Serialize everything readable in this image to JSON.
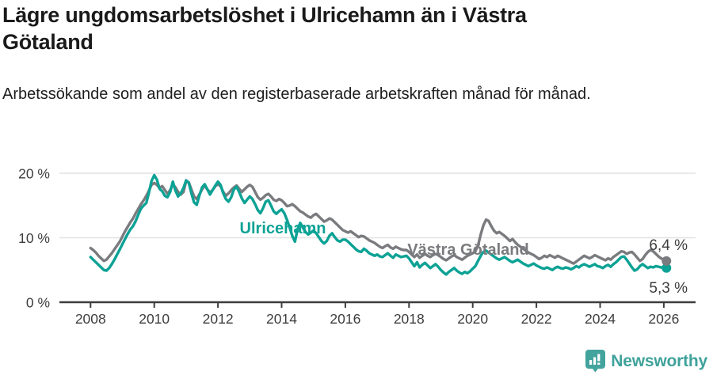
{
  "page": {
    "title": "Lägre ungdomsarbetslöshet i Ulricehamn än i Västra Götaland",
    "subtitle": "Arbetssökande som andel av den registerbaserade arbetskraften månad för månad."
  },
  "footer": {
    "brand": "Newsworthy",
    "logo_icon": "bar-chart-speech-bubble",
    "brand_color": "#3fa29b"
  },
  "chart_data": {
    "type": "line",
    "title": "Lägre ungdomsarbetslöshet i Ulricehamn än i Västra Götaland",
    "subtitle": "Arbetssökande som andel av den registerbaserade arbetskraften månad för månad.",
    "unit": "%",
    "x_start_year": 2008,
    "x_step_months": 1,
    "x_end": "2026-02",
    "x_ticks": [
      2008,
      2010,
      2012,
      2014,
      2016,
      2018,
      2020,
      2022,
      2024,
      2026
    ],
    "ylim": [
      0,
      20
    ],
    "y_ticks": [
      {
        "value": 0,
        "label": "0 %"
      },
      {
        "value": 10,
        "label": "10 %"
      },
      {
        "value": 20,
        "label": "20 %"
      }
    ],
    "grid": "horizontal",
    "legend_position": "inline-labels",
    "series": [
      {
        "name": "Ulricehamn",
        "color": "#0ca295",
        "end_label": "5,3 %",
        "end_value": 5.3,
        "values": [
          7.0,
          6.6,
          6.2,
          5.8,
          5.4,
          5.0,
          4.9,
          5.3,
          5.9,
          6.6,
          7.4,
          8.2,
          9.0,
          9.8,
          10.6,
          11.3,
          11.8,
          12.6,
          13.6,
          14.5,
          15.0,
          15.4,
          17.0,
          18.8,
          19.7,
          19.0,
          17.6,
          17.2,
          16.5,
          16.3,
          17.1,
          18.7,
          17.3,
          16.4,
          16.9,
          17.7,
          18.9,
          18.5,
          16.9,
          15.5,
          15.1,
          16.5,
          17.8,
          18.3,
          17.5,
          16.7,
          17.4,
          18.1,
          18.7,
          18.2,
          16.9,
          16.0,
          15.6,
          16.3,
          17.5,
          17.9,
          17.1,
          16.1,
          15.4,
          15.9,
          16.4,
          16.0,
          15.2,
          14.3,
          13.8,
          14.6,
          15.6,
          15.8,
          15.0,
          14.1,
          13.7,
          14.1,
          14.4,
          13.8,
          12.8,
          11.6,
          10.3,
          9.4,
          11.3,
          12.3,
          11.6,
          10.9,
          10.5,
          10.8,
          11.1,
          10.7,
          10.1,
          9.5,
          9.1,
          9.5,
          10.3,
          10.7,
          10.1,
          9.6,
          9.4,
          9.7,
          9.7,
          9.4,
          9.0,
          8.6,
          8.2,
          7.9,
          7.8,
          8.3,
          8.0,
          7.6,
          7.4,
          7.2,
          7.4,
          7.1,
          7.0,
          7.3,
          7.6,
          7.2,
          6.9,
          7.4,
          7.2,
          7.0,
          7.1,
          7.2,
          6.8,
          6.2,
          5.6,
          6.2,
          5.4,
          5.8,
          6.1,
          5.7,
          5.3,
          5.6,
          5.9,
          5.5,
          5.0,
          4.6,
          4.3,
          4.7,
          5.0,
          5.3,
          4.9,
          4.6,
          4.4,
          4.7,
          4.5,
          4.8,
          5.2,
          5.6,
          6.4,
          7.2,
          7.8,
          8.0,
          7.7,
          7.4,
          7.1,
          6.8,
          6.6,
          6.8,
          7.0,
          6.7,
          6.4,
          6.2,
          6.4,
          6.6,
          6.3,
          6.0,
          5.8,
          5.6,
          5.8,
          6.0,
          5.7,
          5.5,
          5.3,
          5.2,
          5.4,
          5.2,
          5.0,
          5.3,
          5.5,
          5.3,
          5.2,
          5.4,
          5.3,
          5.1,
          5.3,
          5.6,
          5.4,
          5.7,
          5.9,
          5.7,
          5.5,
          5.7,
          5.9,
          5.6,
          5.5,
          5.3,
          5.6,
          5.8,
          5.5,
          5.9,
          6.2,
          6.6,
          7.0,
          7.1,
          6.6,
          6.0,
          5.4,
          4.9,
          5.1,
          5.6,
          5.9,
          5.6,
          5.3,
          5.5,
          5.4,
          5.6,
          5.5,
          5.4,
          5.4,
          5.3
        ]
      },
      {
        "name": "Västra Götaland",
        "color": "#7a7b7e",
        "end_label": "6,4 %",
        "end_value": 6.4,
        "values": [
          8.4,
          8.1,
          7.7,
          7.2,
          6.8,
          6.4,
          6.6,
          7.1,
          7.6,
          8.2,
          8.8,
          9.4,
          10.2,
          11.0,
          11.7,
          12.4,
          13.0,
          13.8,
          14.5,
          15.2,
          15.8,
          16.5,
          17.3,
          18.2,
          18.5,
          18.2,
          17.7,
          18.0,
          17.4,
          16.8,
          17.4,
          18.3,
          17.8,
          17.1,
          16.7,
          17.1,
          18.8,
          18.6,
          17.5,
          16.4,
          16.0,
          16.7,
          17.5,
          18.1,
          17.5,
          17.0,
          17.4,
          18.0,
          18.3,
          18.0,
          17.1,
          16.5,
          16.9,
          17.4,
          17.8,
          18.1,
          17.6,
          17.1,
          17.5,
          17.9,
          18.2,
          17.9,
          17.1,
          16.3,
          15.9,
          16.2,
          16.6,
          16.8,
          16.4,
          15.9,
          15.7,
          16.0,
          15.8,
          15.4,
          14.9,
          15.0,
          15.2,
          14.9,
          14.5,
          14.1,
          13.9,
          13.6,
          13.3,
          13.1,
          13.5,
          13.7,
          13.3,
          12.9,
          12.5,
          12.7,
          13.0,
          12.8,
          12.4,
          12.0,
          11.6,
          11.2,
          11.0,
          10.8,
          11.0,
          10.7,
          10.4,
          10.1,
          10.3,
          10.2,
          9.9,
          9.6,
          9.4,
          9.2,
          8.9,
          8.6,
          8.4,
          8.7,
          8.9,
          8.5,
          8.3,
          8.6,
          8.4,
          8.2,
          8.1,
          8.1,
          7.8,
          7.4,
          7.0,
          7.4,
          6.9,
          7.2,
          7.5,
          7.2,
          7.0,
          7.3,
          7.5,
          7.3,
          7.0,
          6.7,
          6.5,
          6.8,
          7.1,
          7.3,
          7.0,
          6.8,
          6.6,
          6.9,
          7.2,
          7.4,
          7.6,
          7.9,
          8.8,
          10.5,
          11.9,
          12.8,
          12.6,
          11.8,
          11.1,
          10.7,
          10.9,
          10.6,
          10.3,
          9.9,
          9.5,
          9.8,
          9.3,
          8.9,
          8.6,
          8.3,
          8.0,
          7.7,
          7.5,
          7.3,
          7.0,
          6.7,
          6.9,
          7.2,
          7.0,
          7.3,
          7.1,
          6.9,
          7.2,
          7.0,
          6.8,
          6.6,
          6.4,
          6.2,
          6.0,
          6.3,
          6.6,
          6.9,
          7.2,
          7.0,
          6.8,
          7.0,
          7.3,
          7.1,
          6.9,
          6.7,
          6.5,
          6.8,
          6.6,
          7.0,
          7.3,
          7.6,
          7.9,
          7.8,
          7.5,
          7.7,
          7.8,
          7.4,
          6.9,
          6.4,
          6.7,
          7.3,
          7.8,
          8.1,
          7.9,
          7.5,
          7.1,
          6.8,
          6.6,
          6.4
        ]
      }
    ]
  }
}
